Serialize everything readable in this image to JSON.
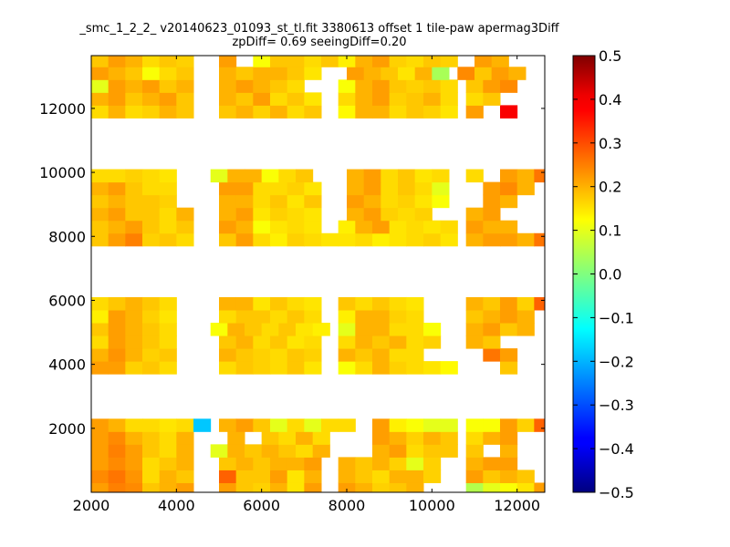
{
  "chart_data": {
    "type": "heatmap",
    "title_lines": [
      "_smc_1_2_2_ v20140623_01093_st_tl.fit 3380613 offset 1 tile-paw apermag3Diff",
      "zpDiff= 0.69 seeingDiff=0.20"
    ],
    "xlabel": "",
    "ylabel": "",
    "xlim": [
      2000,
      12650
    ],
    "ylim": [
      0,
      13650
    ],
    "x_ticks": [
      2000,
      4000,
      6000,
      8000,
      10000,
      12000
    ],
    "y_ticks": [
      2000,
      4000,
      6000,
      8000,
      10000,
      12000
    ],
    "colorbar": {
      "range": [
        -0.5,
        0.5
      ],
      "ticks": [
        "0.5",
        "0.4",
        "0.3",
        "0.2",
        "0.1",
        "0.0",
        "−0.1",
        "−0.2",
        "−0.3",
        "−0.4",
        "−0.5"
      ],
      "colormap": "jet"
    },
    "cell_size": [
      400,
      400
    ],
    "grid": false,
    "rows": [
      {
        "y": 100,
        "x0": 2000,
        "values": [
          0.22,
          0.25,
          0.24,
          0.18,
          0.2,
          0.22
        ]
      },
      {
        "y": 100,
        "x0": 5000,
        "values": [
          0.22,
          0.18,
          0.17,
          0.2,
          0.15,
          0.22
        ]
      },
      {
        "y": 100,
        "x0": 7800,
        "values": [
          0.22,
          0.2,
          0.17,
          0.18,
          0.2
        ]
      },
      {
        "y": 100,
        "x0": 10800,
        "values": [
          0.05,
          0.1,
          0.12,
          0.15,
          0.22,
          0.08
        ]
      },
      {
        "y": 500,
        "x0": 2000,
        "values": [
          0.24,
          0.26,
          0.23,
          0.16,
          0.2,
          0.18
        ]
      },
      {
        "y": 500,
        "x0": 5000,
        "values": [
          0.28,
          0.18,
          0.18,
          0.22,
          0.15,
          0.2
        ]
      },
      {
        "y": 500,
        "x0": 7800,
        "values": [
          0.2,
          0.18,
          0.16,
          0.2,
          0.2,
          0.17
        ]
      },
      {
        "y": 500,
        "x0": 10800,
        "values": [
          0.22,
          0.18,
          0.2,
          0.18
        ]
      },
      {
        "y": 900,
        "x0": 2000,
        "values": [
          0.22,
          0.24,
          0.22,
          0.16,
          0.18,
          0.2
        ]
      },
      {
        "y": 900,
        "x0": 5000,
        "values": [
          0.18,
          0.2,
          0.18,
          0.2,
          0.2,
          0.22
        ]
      },
      {
        "y": 900,
        "x0": 7800,
        "values": [
          0.2,
          0.18,
          0.2,
          0.17,
          0.1,
          0.17
        ]
      },
      {
        "y": 900,
        "x0": 10800,
        "values": [
          0.2,
          0.22,
          0.22
        ]
      },
      {
        "y": 1300,
        "x0": 2000,
        "values": [
          0.22,
          0.25,
          0.22,
          0.18,
          0.16,
          0.2
        ]
      },
      {
        "y": 1300,
        "x0": 4800,
        "values": [
          0.1,
          0.2,
          0.18
        ]
      },
      {
        "y": 1300,
        "x0": 6000,
        "values": [
          0.2,
          0.18,
          0.16,
          0.2
        ]
      },
      {
        "y": 1300,
        "x0": 8600,
        "values": [
          0.2,
          0.22,
          0.16,
          0.18,
          0.18
        ]
      },
      {
        "y": 1300,
        "x0": 10800,
        "values": [
          0.18
        ]
      },
      {
        "y": 1300,
        "x0": 11600,
        "values": [
          0.2
        ]
      },
      {
        "y": 1700,
        "x0": 2000,
        "values": [
          0.22,
          0.24,
          0.2,
          0.18,
          0.16,
          0.2
        ]
      },
      {
        "y": 1700,
        "x0": 5200,
        "values": [
          0.2
        ]
      },
      {
        "y": 1700,
        "x0": 6000,
        "values": [
          0.18,
          0.16,
          0.2,
          0.16
        ]
      },
      {
        "y": 1700,
        "x0": 8600,
        "values": [
          0.22,
          0.2,
          0.17,
          0.2,
          0.18
        ]
      },
      {
        "y": 1700,
        "x0": 10800,
        "values": [
          0.16,
          0.2,
          0.22
        ]
      },
      {
        "y": 2100,
        "x0": 2000,
        "values": [
          0.22,
          0.2,
          0.16,
          0.16,
          0.15,
          0.16,
          -0.18
        ]
      },
      {
        "y": 2100,
        "x0": 5000,
        "values": [
          0.2,
          0.22,
          0.18,
          0.1,
          0.16,
          0.1,
          0.16
        ]
      },
      {
        "y": 2100,
        "x0": 7800,
        "values": [
          0.16
        ]
      },
      {
        "y": 2100,
        "x0": 8600,
        "values": [
          0.22,
          0.14,
          0.12,
          0.1,
          0.1
        ]
      },
      {
        "y": 2100,
        "x0": 10800,
        "values": [
          0.12,
          0.12,
          0.22,
          0.17,
          0.28,
          0.22
        ]
      },
      {
        "y": 3900,
        "x0": 2000,
        "values": [
          0.22,
          0.22,
          0.17,
          0.18,
          0.16
        ]
      },
      {
        "y": 3900,
        "x0": 5000,
        "values": [
          0.16,
          0.18,
          0.17,
          0.16,
          0.18,
          0.15
        ]
      },
      {
        "y": 3900,
        "x0": 7800,
        "values": [
          0.12,
          0.16
        ]
      },
      {
        "y": 3900,
        "x0": 8600,
        "values": [
          0.2,
          0.17,
          0.16,
          0.15,
          0.13
        ]
      },
      {
        "y": 3900,
        "x0": 11600,
        "values": [
          0.18
        ]
      },
      {
        "y": 4300,
        "x0": 2000,
        "values": [
          0.2,
          0.23,
          0.2,
          0.17,
          0.18
        ]
      },
      {
        "y": 4300,
        "x0": 5000,
        "values": [
          0.2,
          0.18,
          0.17,
          0.16,
          0.18,
          0.17
        ]
      },
      {
        "y": 4300,
        "x0": 7800,
        "values": [
          0.2,
          0.18,
          0.2,
          0.16,
          0.16
        ]
      },
      {
        "y": 4300,
        "x0": 11200,
        "values": [
          0.26,
          0.22
        ]
      },
      {
        "y": 4700,
        "x0": 2000,
        "values": [
          0.16,
          0.22,
          0.2,
          0.18,
          0.16
        ]
      },
      {
        "y": 4700,
        "x0": 5000,
        "values": [
          0.18,
          0.2,
          0.16,
          0.18,
          0.15,
          0.16
        ]
      },
      {
        "y": 4700,
        "x0": 7800,
        "values": [
          0.16,
          0.2,
          0.18,
          0.2,
          0.16,
          0.17
        ]
      },
      {
        "y": 4700,
        "x0": 10800,
        "values": [
          0.2,
          0.18
        ]
      },
      {
        "y": 5100,
        "x0": 2000,
        "values": [
          0.18,
          0.22,
          0.2,
          0.18,
          0.16
        ]
      },
      {
        "y": 5100,
        "x0": 4800,
        "values": [
          0.12,
          0.2,
          0.18,
          0.16,
          0.18,
          0.15,
          0.14
        ]
      },
      {
        "y": 5100,
        "x0": 7800,
        "values": [
          0.1,
          0.2,
          0.2,
          0.16,
          0.16,
          0.12
        ]
      },
      {
        "y": 5100,
        "x0": 10800,
        "values": [
          0.2,
          0.22,
          0.18,
          0.2
        ]
      },
      {
        "y": 5500,
        "x0": 2000,
        "values": [
          0.14,
          0.22,
          0.2,
          0.17,
          0.15
        ]
      },
      {
        "y": 5500,
        "x0": 5000,
        "values": [
          0.16,
          0.18,
          0.18,
          0.16,
          0.18,
          0.16
        ]
      },
      {
        "y": 5500,
        "x0": 7800,
        "values": [
          0.14,
          0.2,
          0.2,
          0.17,
          0.16
        ]
      },
      {
        "y": 5500,
        "x0": 10800,
        "values": [
          0.18,
          0.2,
          0.22,
          0.2
        ]
      },
      {
        "y": 5900,
        "x0": 2000,
        "values": [
          0.16,
          0.18,
          0.2,
          0.18,
          0.16
        ]
      },
      {
        "y": 5900,
        "x0": 5000,
        "values": [
          0.2,
          0.2,
          0.15,
          0.18,
          0.16,
          0.15
        ]
      },
      {
        "y": 5900,
        "x0": 7800,
        "values": [
          0.18,
          0.16,
          0.18,
          0.16,
          0.15
        ]
      },
      {
        "y": 5900,
        "x0": 10800,
        "values": [
          0.2,
          0.18,
          0.22,
          0.17,
          0.28
        ]
      },
      {
        "y": 7900,
        "x0": 2000,
        "values": [
          0.18,
          0.22,
          0.25,
          0.17,
          0.18,
          0.16
        ]
      },
      {
        "y": 7900,
        "x0": 5000,
        "values": [
          0.18,
          0.22,
          0.16,
          0.14,
          0.17,
          0.16,
          0.15
        ]
      },
      {
        "y": 7900,
        "x0": 7800,
        "values": [
          0.15,
          0.16,
          0.14,
          0.15,
          0.16,
          0.17,
          0.15
        ]
      },
      {
        "y": 7900,
        "x0": 10800,
        "values": [
          0.2,
          0.22,
          0.22,
          0.2
        ]
      },
      {
        "y": 7900,
        "x0": 12400,
        "values": [
          0.26
        ]
      },
      {
        "y": 8300,
        "x0": 2000,
        "values": [
          0.18,
          0.2,
          0.22,
          0.18,
          0.16,
          0.18
        ]
      },
      {
        "y": 8300,
        "x0": 5000,
        "values": [
          0.22,
          0.2,
          0.12,
          0.15,
          0.16,
          0.15
        ]
      },
      {
        "y": 8300,
        "x0": 7800,
        "values": [
          0.14,
          0.2,
          0.22,
          0.15,
          0.16,
          0.15,
          0.16
        ]
      },
      {
        "y": 8300,
        "x0": 10800,
        "values": [
          0.22,
          0.2,
          0.2
        ]
      },
      {
        "y": 8700,
        "x0": 2000,
        "values": [
          0.2,
          0.22,
          0.18,
          0.18,
          0.16,
          0.2
        ]
      },
      {
        "y": 8700,
        "x0": 5000,
        "values": [
          0.2,
          0.22,
          0.15,
          0.17,
          0.16,
          0.15
        ]
      },
      {
        "y": 8700,
        "x0": 8000,
        "values": [
          0.2,
          0.22,
          0.17,
          0.16,
          0.17
        ]
      },
      {
        "y": 8700,
        "x0": 10800,
        "values": [
          0.2,
          0.22
        ]
      },
      {
        "y": 9100,
        "x0": 2000,
        "values": [
          0.18,
          0.2,
          0.18,
          0.18,
          0.17
        ]
      },
      {
        "y": 9100,
        "x0": 5000,
        "values": [
          0.2,
          0.2,
          0.16,
          0.18,
          0.15,
          0.18
        ]
      },
      {
        "y": 9100,
        "x0": 8000,
        "values": [
          0.22,
          0.2,
          0.16,
          0.17,
          0.15,
          0.12
        ]
      },
      {
        "y": 9100,
        "x0": 11200,
        "values": [
          0.22,
          0.2
        ]
      },
      {
        "y": 9500,
        "x0": 2000,
        "values": [
          0.2,
          0.22,
          0.18,
          0.16,
          0.16
        ]
      },
      {
        "y": 9500,
        "x0": 5000,
        "values": [
          0.22,
          0.22,
          0.16,
          0.16,
          0.17,
          0.15
        ]
      },
      {
        "y": 9500,
        "x0": 8000,
        "values": [
          0.2,
          0.22,
          0.16,
          0.18,
          0.16,
          0.1
        ]
      },
      {
        "y": 9500,
        "x0": 11200,
        "values": [
          0.22,
          0.24,
          0.2
        ]
      },
      {
        "y": 9900,
        "x0": 2000,
        "values": [
          0.16,
          0.16,
          0.17,
          0.16,
          0.15
        ]
      },
      {
        "y": 9900,
        "x0": 4800,
        "values": [
          0.1,
          0.2,
          0.2,
          0.12,
          0.16,
          0.18
        ]
      },
      {
        "y": 9900,
        "x0": 8000,
        "values": [
          0.2,
          0.22,
          0.16,
          0.18,
          0.15,
          0.16
        ]
      },
      {
        "y": 9900,
        "x0": 10800,
        "values": [
          0.16
        ]
      },
      {
        "y": 9900,
        "x0": 11600,
        "values": [
          0.22,
          0.2,
          0.26
        ]
      },
      {
        "y": 11900,
        "x0": 2000,
        "values": [
          0.16,
          0.2,
          0.16,
          0.17,
          0.2,
          0.18
        ]
      },
      {
        "y": 11900,
        "x0": 5000,
        "values": [
          0.18,
          0.2,
          0.17,
          0.2,
          0.16,
          0.18
        ]
      },
      {
        "y": 11900,
        "x0": 7800,
        "values": [
          0.13,
          0.2,
          0.2,
          0.16,
          0.18,
          0.17,
          0.15
        ]
      },
      {
        "y": 11900,
        "x0": 10800,
        "values": [
          0.22
        ]
      },
      {
        "y": 11900,
        "x0": 11600,
        "values": [
          0.38
        ]
      },
      {
        "y": 12300,
        "x0": 2000,
        "values": [
          0.2,
          0.22,
          0.18,
          0.2,
          0.22,
          0.18
        ]
      },
      {
        "y": 12300,
        "x0": 5000,
        "values": [
          0.2,
          0.18,
          0.22,
          0.16,
          0.18,
          0.15
        ]
      },
      {
        "y": 12300,
        "x0": 7800,
        "values": [
          0.16,
          0.2,
          0.22,
          0.17,
          0.18,
          0.2,
          0.16
        ]
      },
      {
        "y": 12300,
        "x0": 10800,
        "values": [
          0.16,
          0.18
        ]
      },
      {
        "y": 12700,
        "x0": 2000,
        "values": [
          0.1,
          0.22,
          0.2,
          0.22,
          0.18,
          0.2
        ]
      },
      {
        "y": 12700,
        "x0": 5000,
        "values": [
          0.2,
          0.22,
          0.2,
          0.18,
          0.16
        ]
      },
      {
        "y": 12700,
        "x0": 7800,
        "values": [
          0.12,
          0.2,
          0.22,
          0.18,
          0.17,
          0.18,
          0.16
        ]
      },
      {
        "y": 12700,
        "x0": 10800,
        "values": [
          0.18,
          0.22,
          0.24
        ]
      },
      {
        "y": 13100,
        "x0": 2000,
        "values": [
          0.22,
          0.2,
          0.18,
          0.12,
          0.16,
          0.18
        ]
      },
      {
        "y": 13100,
        "x0": 5000,
        "values": [
          0.2,
          0.18,
          0.2,
          0.2,
          0.18,
          0.15
        ]
      },
      {
        "y": 13100,
        "x0": 8000,
        "values": [
          0.22,
          0.2,
          0.18,
          0.15,
          0.2,
          0.04
        ]
      },
      {
        "y": 13100,
        "x0": 10600,
        "values": [
          0.24
        ]
      },
      {
        "y": 13100,
        "x0": 11000,
        "values": [
          0.18,
          0.22,
          0.2
        ]
      },
      {
        "y": 13500,
        "x0": 2000,
        "values": [
          0.18,
          0.22,
          0.2,
          0.16,
          0.18,
          0.17
        ]
      },
      {
        "y": 13500,
        "x0": 5000,
        "values": [
          0.22
        ]
      },
      {
        "y": 13500,
        "x0": 5800,
        "values": [
          0.12,
          0.18,
          0.18,
          0.16,
          0.18
        ]
      },
      {
        "y": 13500,
        "x0": 7800,
        "values": [
          0.14,
          0.2,
          0.22,
          0.17,
          0.16,
          0.18,
          0.17
        ]
      },
      {
        "y": 13500,
        "x0": 11000,
        "values": [
          0.22,
          0.2
        ]
      }
    ]
  }
}
